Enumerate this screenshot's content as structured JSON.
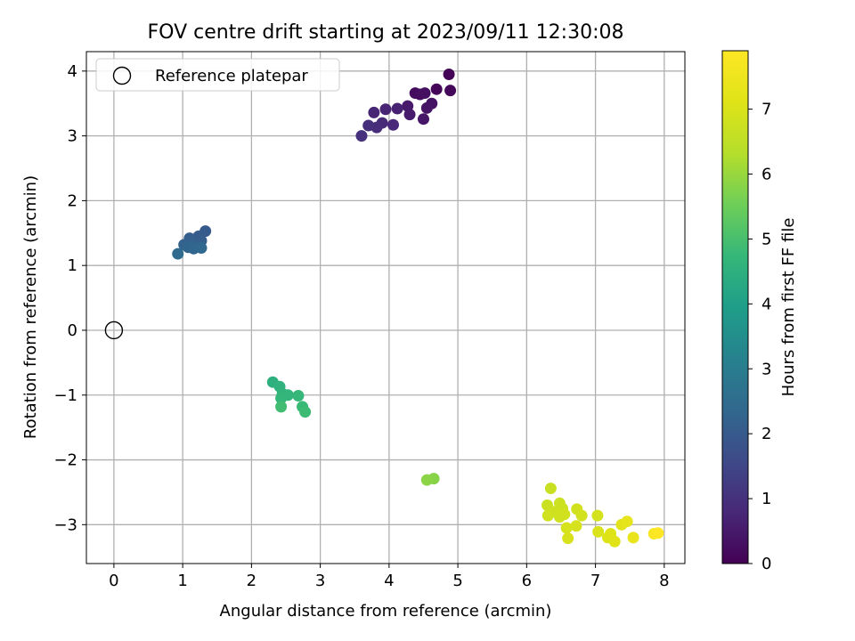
{
  "chart_data": {
    "type": "scatter",
    "title": "FOV centre drift starting at 2023/09/11 12:30:08",
    "xlabel": "Angular distance from reference (arcmin)",
    "ylabel": "Rotation from reference (arcmin)",
    "xlim": [
      -0.4,
      8.3
    ],
    "ylim": [
      -3.6,
      4.3
    ],
    "x_ticks": [
      0,
      1,
      2,
      3,
      4,
      5,
      6,
      7,
      8
    ],
    "y_ticks": [
      -3,
      -2,
      -1,
      0,
      1,
      2,
      3,
      4
    ],
    "x_tick_labels": [
      "0",
      "1",
      "2",
      "3",
      "4",
      "5",
      "6",
      "7",
      "8"
    ],
    "y_tick_labels": [
      "−3",
      "−2",
      "−1",
      "0",
      "1",
      "2",
      "3",
      "4"
    ],
    "grid": true,
    "legend": {
      "placement": "top-left",
      "entries": [
        "Reference platepar"
      ]
    },
    "reference_point": {
      "x": 0,
      "y": 0,
      "label": "Reference platepar"
    },
    "colorbar": {
      "label": "Hours from first FF file",
      "range": [
        0,
        7.9
      ],
      "ticks": [
        0,
        1,
        2,
        3,
        4,
        5,
        6,
        7
      ],
      "tick_labels": [
        "0",
        "1",
        "2",
        "3",
        "4",
        "5",
        "6",
        "7"
      ],
      "colormap": "viridis"
    },
    "points": [
      {
        "x": 4.87,
        "y": 3.95,
        "hours": 0.05
      },
      {
        "x": 4.69,
        "y": 3.72,
        "hours": 0.1
      },
      {
        "x": 4.89,
        "y": 3.7,
        "hours": 0.12
      },
      {
        "x": 4.38,
        "y": 3.66,
        "hours": 0.2
      },
      {
        "x": 4.45,
        "y": 3.64,
        "hours": 0.25
      },
      {
        "x": 4.52,
        "y": 3.66,
        "hours": 0.3
      },
      {
        "x": 4.62,
        "y": 3.5,
        "hours": 0.35
      },
      {
        "x": 4.55,
        "y": 3.43,
        "hours": 0.4
      },
      {
        "x": 4.5,
        "y": 3.26,
        "hours": 0.45
      },
      {
        "x": 4.27,
        "y": 3.46,
        "hours": 0.5
      },
      {
        "x": 4.3,
        "y": 3.33,
        "hours": 0.55
      },
      {
        "x": 4.12,
        "y": 3.42,
        "hours": 0.65
      },
      {
        "x": 3.95,
        "y": 3.41,
        "hours": 0.7
      },
      {
        "x": 3.78,
        "y": 3.36,
        "hours": 0.75
      },
      {
        "x": 4.06,
        "y": 3.17,
        "hours": 0.8
      },
      {
        "x": 3.9,
        "y": 3.2,
        "hours": 0.85
      },
      {
        "x": 3.82,
        "y": 3.13,
        "hours": 0.9
      },
      {
        "x": 3.7,
        "y": 3.16,
        "hours": 0.95
      },
      {
        "x": 3.6,
        "y": 3.0,
        "hours": 1.0
      },
      {
        "x": 1.33,
        "y": 1.53,
        "hours": 2.0
      },
      {
        "x": 1.23,
        "y": 1.45,
        "hours": 2.05
      },
      {
        "x": 1.27,
        "y": 1.38,
        "hours": 2.1
      },
      {
        "x": 1.1,
        "y": 1.42,
        "hours": 2.15
      },
      {
        "x": 1.02,
        "y": 1.32,
        "hours": 2.2
      },
      {
        "x": 1.17,
        "y": 1.3,
        "hours": 2.25
      },
      {
        "x": 1.08,
        "y": 1.28,
        "hours": 2.3
      },
      {
        "x": 1.16,
        "y": 1.26,
        "hours": 2.35
      },
      {
        "x": 1.27,
        "y": 1.27,
        "hours": 2.4
      },
      {
        "x": 0.93,
        "y": 1.18,
        "hours": 2.45
      },
      {
        "x": 2.31,
        "y": -0.8,
        "hours": 4.5
      },
      {
        "x": 2.41,
        "y": -0.87,
        "hours": 4.55
      },
      {
        "x": 2.45,
        "y": -0.98,
        "hours": 4.6
      },
      {
        "x": 2.53,
        "y": -1.0,
        "hours": 4.65
      },
      {
        "x": 2.43,
        "y": -1.05,
        "hours": 4.7
      },
      {
        "x": 2.68,
        "y": -1.01,
        "hours": 4.75
      },
      {
        "x": 2.74,
        "y": -1.18,
        "hours": 4.8
      },
      {
        "x": 2.78,
        "y": -1.26,
        "hours": 4.85
      },
      {
        "x": 2.43,
        "y": -1.18,
        "hours": 4.9
      },
      {
        "x": 4.65,
        "y": -2.29,
        "hours": 5.8
      },
      {
        "x": 4.55,
        "y": -2.31,
        "hours": 5.85
      },
      {
        "x": 6.35,
        "y": -2.44,
        "hours": 6.7
      },
      {
        "x": 6.3,
        "y": -2.7,
        "hours": 6.72
      },
      {
        "x": 6.48,
        "y": -2.67,
        "hours": 6.74
      },
      {
        "x": 6.52,
        "y": -2.75,
        "hours": 6.76
      },
      {
        "x": 6.4,
        "y": -2.8,
        "hours": 6.78
      },
      {
        "x": 6.31,
        "y": -2.86,
        "hours": 6.8
      },
      {
        "x": 6.48,
        "y": -2.88,
        "hours": 6.82
      },
      {
        "x": 6.55,
        "y": -2.84,
        "hours": 6.84
      },
      {
        "x": 6.73,
        "y": -2.76,
        "hours": 6.86
      },
      {
        "x": 6.8,
        "y": -2.86,
        "hours": 6.88
      },
      {
        "x": 7.03,
        "y": -2.86,
        "hours": 6.9
      },
      {
        "x": 6.72,
        "y": -3.02,
        "hours": 6.92
      },
      {
        "x": 6.58,
        "y": -3.05,
        "hours": 6.94
      },
      {
        "x": 6.6,
        "y": -3.21,
        "hours": 6.96
      },
      {
        "x": 7.04,
        "y": -3.11,
        "hours": 7.0
      },
      {
        "x": 7.18,
        "y": -3.2,
        "hours": 7.05
      },
      {
        "x": 7.22,
        "y": -3.14,
        "hours": 7.1
      },
      {
        "x": 7.28,
        "y": -3.26,
        "hours": 7.15
      },
      {
        "x": 7.38,
        "y": -3.0,
        "hours": 7.2
      },
      {
        "x": 7.46,
        "y": -2.95,
        "hours": 7.3
      },
      {
        "x": 7.55,
        "y": -3.2,
        "hours": 7.4
      },
      {
        "x": 7.85,
        "y": -3.14,
        "hours": 7.8
      },
      {
        "x": 7.91,
        "y": -3.13,
        "hours": 7.9
      }
    ]
  }
}
